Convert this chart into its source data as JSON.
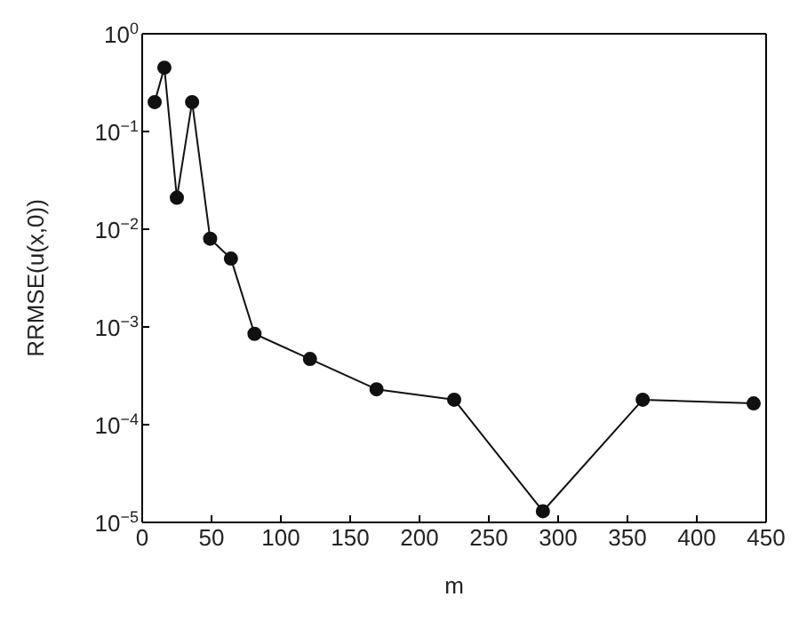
{
  "chart_data": {
    "type": "line",
    "xlabel": "m",
    "ylabel": "RRMSE(u(x,0))",
    "log": "y",
    "marker": "circle",
    "line_style": "solid",
    "grid": false,
    "legend": false,
    "x": [
      9,
      16,
      25,
      36,
      49,
      64,
      81,
      121,
      169,
      225,
      289,
      361,
      441
    ],
    "series": [
      {
        "color": "#111111",
        "values": [
          0.2,
          0.45,
          0.021,
          0.2,
          0.008,
          0.005,
          0.00085,
          0.00047,
          0.00023,
          0.00018,
          1.3e-05,
          0.00018,
          0.000165
        ]
      }
    ],
    "xlim": [
      0,
      450
    ],
    "xticks": [
      0,
      50,
      100,
      150,
      200,
      250,
      300,
      350,
      400,
      450
    ],
    "ylim": [
      1e-05,
      1
    ],
    "yticks": [
      {
        "value": 1e-05,
        "label": "10$^{−5}$"
      },
      {
        "value": 0.0001,
        "label": "10$^{−4}$"
      },
      {
        "value": 0.001,
        "label": "10$^{−3}$"
      },
      {
        "value": 0.01,
        "label": "10$^{−2}$"
      },
      {
        "value": 0.1,
        "label": "10$^{−1}$"
      },
      {
        "value": 1,
        "label": "10$^{0}$"
      }
    ]
  }
}
